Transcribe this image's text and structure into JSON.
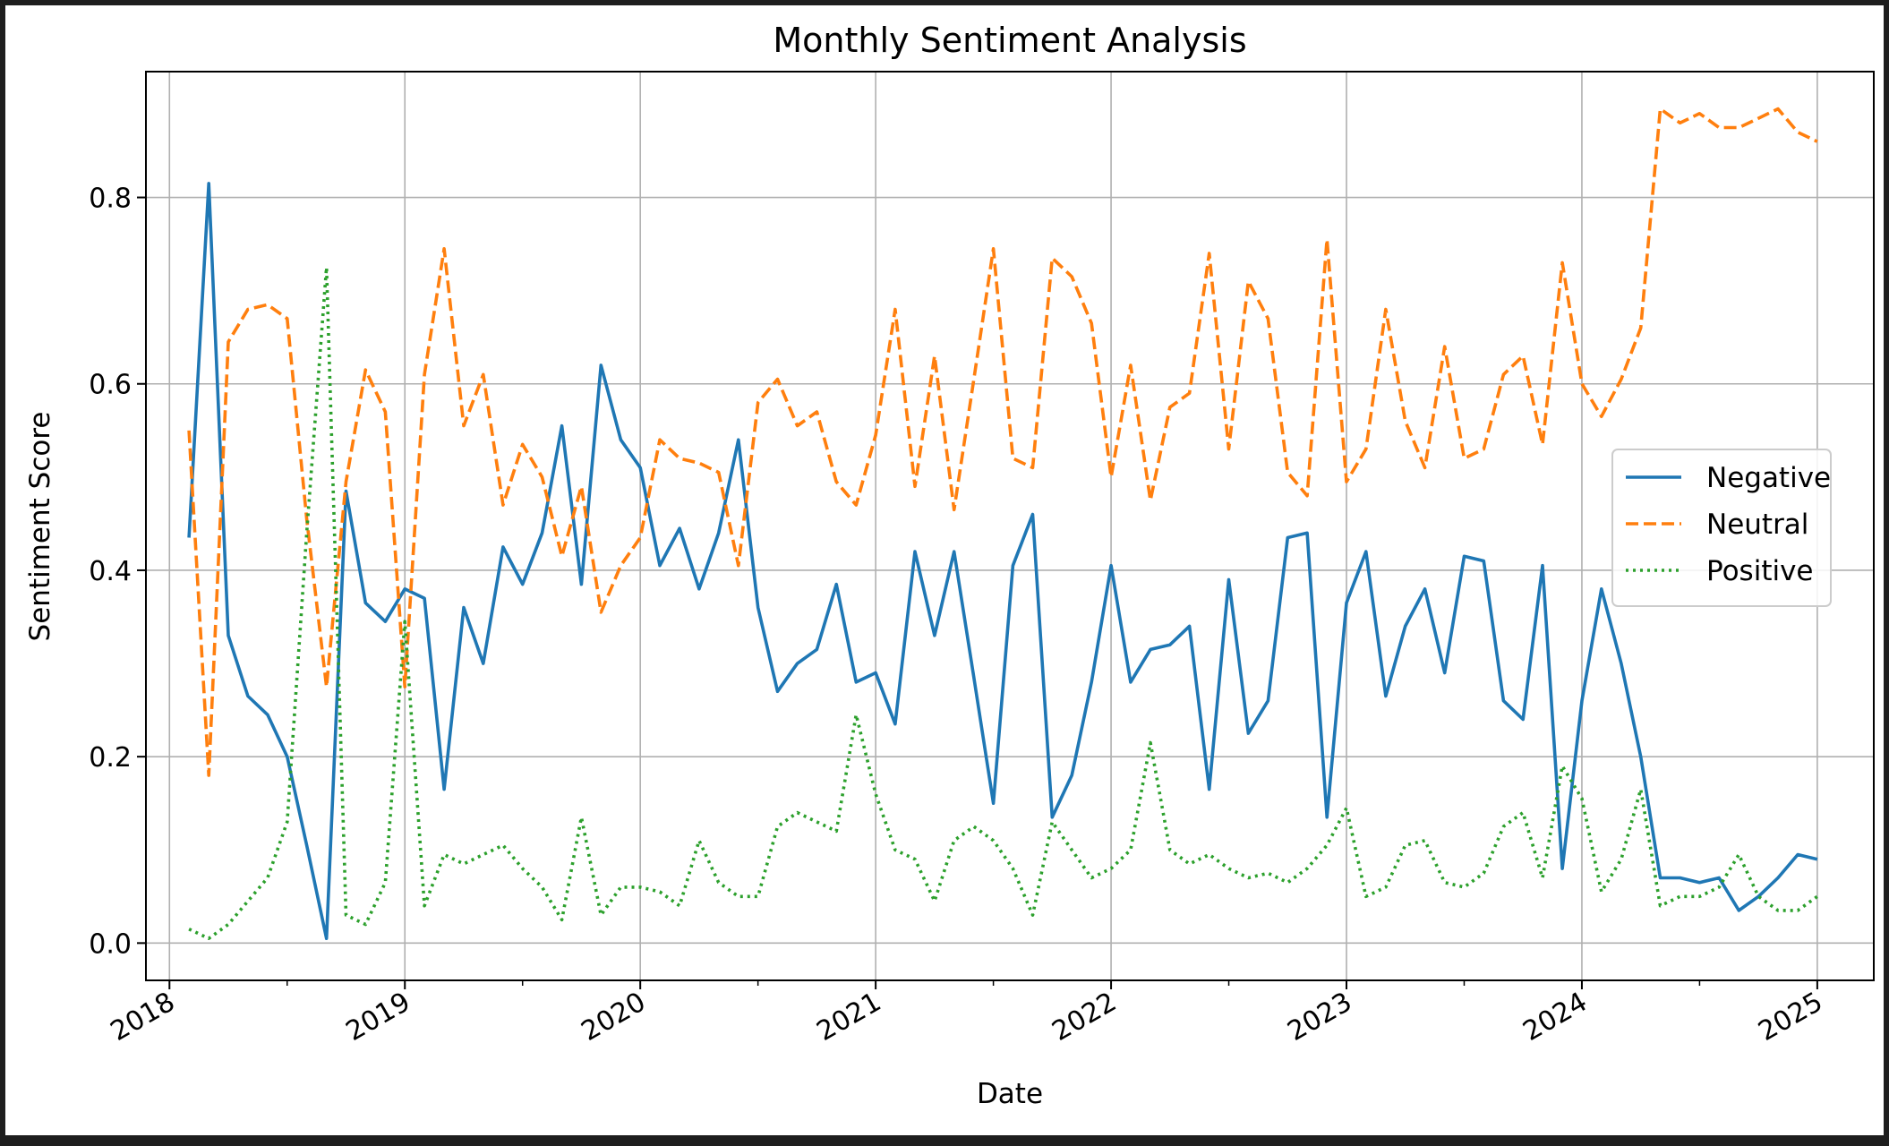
{
  "chart_data": {
    "type": "line",
    "title": "Monthly Sentiment Analysis",
    "xlabel": "Date",
    "ylabel": "Sentiment Score",
    "x_range": [
      2017.9,
      2025.24
    ],
    "ylim": [
      -0.04,
      0.935
    ],
    "grid": true,
    "legend_position": "center-right",
    "x_ticks": [
      {
        "value": 2018,
        "label": "2018"
      },
      {
        "value": 2019,
        "label": "2019"
      },
      {
        "value": 2020,
        "label": "2020"
      },
      {
        "value": 2021,
        "label": "2021"
      },
      {
        "value": 2022,
        "label": "2022"
      },
      {
        "value": 2023,
        "label": "2023"
      },
      {
        "value": 2024,
        "label": "2024"
      },
      {
        "value": 2025,
        "label": "2025"
      }
    ],
    "y_ticks": [
      {
        "value": 0.0,
        "label": "0.0"
      },
      {
        "value": 0.2,
        "label": "0.2"
      },
      {
        "value": 0.4,
        "label": "0.4"
      },
      {
        "value": 0.6,
        "label": "0.6"
      },
      {
        "value": 0.8,
        "label": "0.8"
      }
    ],
    "x": [
      2018.083,
      2018.167,
      2018.25,
      2018.333,
      2018.417,
      2018.5,
      2018.583,
      2018.667,
      2018.75,
      2018.833,
      2018.917,
      2019.0,
      2019.083,
      2019.167,
      2019.25,
      2019.333,
      2019.417,
      2019.5,
      2019.583,
      2019.667,
      2019.75,
      2019.833,
      2019.917,
      2020.0,
      2020.083,
      2020.167,
      2020.25,
      2020.333,
      2020.417,
      2020.5,
      2020.583,
      2020.667,
      2020.75,
      2020.833,
      2020.917,
      2021.0,
      2021.083,
      2021.167,
      2021.25,
      2021.333,
      2021.417,
      2021.5,
      2021.583,
      2021.667,
      2021.75,
      2021.833,
      2021.917,
      2022.0,
      2022.083,
      2022.167,
      2022.25,
      2022.333,
      2022.417,
      2022.5,
      2022.583,
      2022.667,
      2022.75,
      2022.833,
      2022.917,
      2023.0,
      2023.083,
      2023.167,
      2023.25,
      2023.333,
      2023.417,
      2023.5,
      2023.583,
      2023.667,
      2023.75,
      2023.833,
      2023.917,
      2024.0,
      2024.083,
      2024.167,
      2024.25,
      2024.333,
      2024.417,
      2024.5,
      2024.583,
      2024.667,
      2024.75,
      2024.833,
      2024.917,
      2025.0
    ],
    "series": [
      {
        "name": "Negative",
        "color": "#1f77b4",
        "dash": "solid",
        "values": [
          0.435,
          0.815,
          0.33,
          0.265,
          0.245,
          0.2,
          0.105,
          0.005,
          0.485,
          0.365,
          0.345,
          0.38,
          0.37,
          0.165,
          0.36,
          0.3,
          0.425,
          0.385,
          0.44,
          0.555,
          0.385,
          0.62,
          0.54,
          0.51,
          0.405,
          0.445,
          0.38,
          0.44,
          0.54,
          0.36,
          0.27,
          0.3,
          0.315,
          0.385,
          0.28,
          0.29,
          0.235,
          0.42,
          0.33,
          0.42,
          0.285,
          0.15,
          0.405,
          0.46,
          0.135,
          0.18,
          0.28,
          0.405,
          0.28,
          0.315,
          0.32,
          0.34,
          0.165,
          0.39,
          0.225,
          0.26,
          0.435,
          0.44,
          0.135,
          0.365,
          0.42,
          0.265,
          0.34,
          0.38,
          0.29,
          0.415,
          0.41,
          0.26,
          0.24,
          0.405,
          0.08,
          0.26,
          0.38,
          0.3,
          0.2,
          0.07,
          0.07,
          0.065,
          0.07,
          0.035,
          0.05,
          0.07,
          0.095,
          0.09
        ]
      },
      {
        "name": "Neutral",
        "color": "#ff7f0e",
        "dash": "dashed",
        "values": [
          0.55,
          0.18,
          0.645,
          0.68,
          0.685,
          0.67,
          0.455,
          0.275,
          0.495,
          0.615,
          0.57,
          0.275,
          0.61,
          0.745,
          0.555,
          0.61,
          0.47,
          0.535,
          0.5,
          0.415,
          0.49,
          0.355,
          0.405,
          0.435,
          0.54,
          0.52,
          0.515,
          0.505,
          0.405,
          0.58,
          0.605,
          0.555,
          0.57,
          0.495,
          0.47,
          0.545,
          0.68,
          0.49,
          0.63,
          0.465,
          0.605,
          0.745,
          0.52,
          0.51,
          0.735,
          0.715,
          0.665,
          0.5,
          0.62,
          0.475,
          0.575,
          0.59,
          0.74,
          0.53,
          0.71,
          0.67,
          0.505,
          0.48,
          0.755,
          0.495,
          0.53,
          0.68,
          0.56,
          0.51,
          0.64,
          0.52,
          0.53,
          0.61,
          0.63,
          0.535,
          0.73,
          0.6,
          0.565,
          0.605,
          0.66,
          0.895,
          0.88,
          0.89,
          0.875,
          0.875,
          0.885,
          0.895,
          0.87,
          0.86
        ]
      },
      {
        "name": "Positive",
        "color": "#2ca02c",
        "dash": "dotted",
        "values": [
          0.015,
          0.005,
          0.02,
          0.045,
          0.07,
          0.13,
          0.44,
          0.725,
          0.03,
          0.02,
          0.065,
          0.345,
          0.04,
          0.095,
          0.085,
          0.095,
          0.105,
          0.08,
          0.06,
          0.025,
          0.135,
          0.03,
          0.06,
          0.06,
          0.055,
          0.04,
          0.11,
          0.065,
          0.05,
          0.05,
          0.125,
          0.14,
          0.13,
          0.12,
          0.245,
          0.16,
          0.1,
          0.09,
          0.045,
          0.11,
          0.125,
          0.11,
          0.08,
          0.03,
          0.13,
          0.1,
          0.07,
          0.08,
          0.1,
          0.215,
          0.1,
          0.085,
          0.095,
          0.08,
          0.07,
          0.075,
          0.065,
          0.08,
          0.105,
          0.145,
          0.05,
          0.06,
          0.105,
          0.11,
          0.065,
          0.06,
          0.075,
          0.125,
          0.14,
          0.07,
          0.19,
          0.155,
          0.055,
          0.09,
          0.165,
          0.04,
          0.05,
          0.05,
          0.06,
          0.095,
          0.05,
          0.035,
          0.035,
          0.05
        ]
      }
    ]
  }
}
